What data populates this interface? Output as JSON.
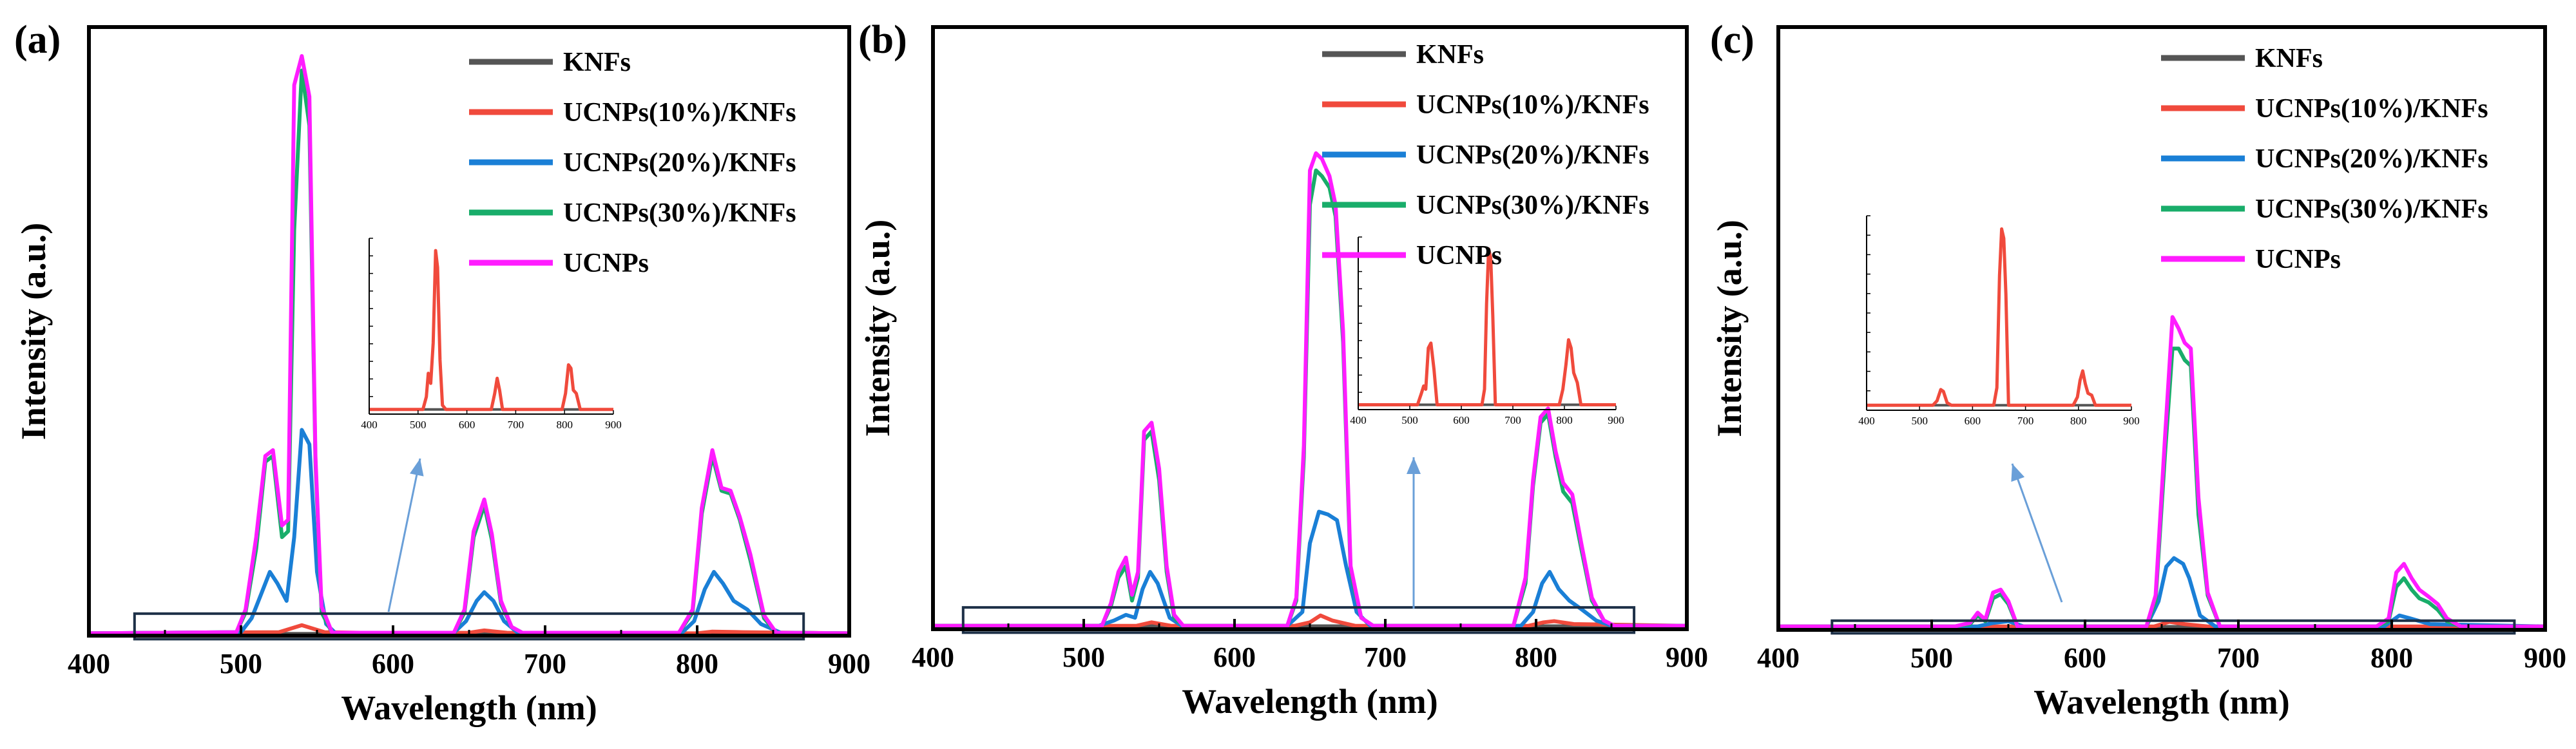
{
  "figure": {
    "series_colors": {
      "KNFs": "#555555",
      "UCNPs(10%)/KNFs": "#f04a3c",
      "UCNPs(20%)/KNFs": "#1a7fd6",
      "UCNPs(30%)/KNFs": "#19ad6a",
      "UCNPs": "#ff1cff"
    },
    "box_color": "#1d3047",
    "arrow_color": "#6a9fd8"
  },
  "chart_data": [
    {
      "type": "line",
      "panel_label": "(a)",
      "xlabel": "Wavelength (nm)",
      "ylabel": "Intensity (a.u.)",
      "xlim": [
        400,
        900
      ],
      "ylim": [
        0,
        1.05
      ],
      "xticks": [
        "400",
        "500",
        "600",
        "700",
        "800",
        "900"
      ],
      "legend": [
        "KNFs",
        "UCNPs(10%)/KNFs",
        "UCNPs(20%)/KNFs",
        "UCNPs(30%)/KNFs",
        "UCNPs"
      ],
      "series": [
        {
          "name": "KNFs",
          "x": [
            400,
            900
          ],
          "y": [
            0.003,
            0.003
          ]
        },
        {
          "name": "UCNPs(10%)/KNFs",
          "x": [
            400,
            525,
            540,
            555,
            600,
            650,
            660,
            675,
            800,
            810,
            830,
            900
          ],
          "y": [
            0.004,
            0.006,
            0.018,
            0.006,
            0.004,
            0.005,
            0.009,
            0.005,
            0.004,
            0.007,
            0.006,
            0.004
          ]
        },
        {
          "name": "UCNPs(20%)/KNFs",
          "x": [
            400,
            500,
            507,
            513,
            519,
            524,
            530,
            535,
            540,
            545,
            550,
            556,
            562,
            640,
            648,
            655,
            660,
            666,
            673,
            682,
            790,
            798,
            805,
            811,
            817,
            824,
            833,
            842,
            855,
            900
          ],
          "y": [
            0.004,
            0.006,
            0.03,
            0.07,
            0.11,
            0.09,
            0.06,
            0.17,
            0.355,
            0.33,
            0.11,
            0.02,
            0.005,
            0.005,
            0.025,
            0.06,
            0.075,
            0.06,
            0.025,
            0.005,
            0.005,
            0.025,
            0.08,
            0.11,
            0.09,
            0.06,
            0.045,
            0.02,
            0.005,
            0.004
          ]
        },
        {
          "name": "UCNPs(30%)/KNFs",
          "x": [
            400,
            497,
            503,
            510,
            516,
            521,
            527,
            531,
            535,
            540,
            545,
            549,
            553,
            560,
            640,
            647,
            653,
            660,
            665,
            671,
            678,
            685,
            788,
            797,
            803,
            810,
            816,
            822,
            828,
            835,
            844,
            852,
            900
          ],
          "y": [
            0.004,
            0.006,
            0.04,
            0.15,
            0.3,
            0.31,
            0.17,
            0.18,
            0.7,
            0.975,
            0.88,
            0.3,
            0.04,
            0.005,
            0.005,
            0.04,
            0.17,
            0.225,
            0.165,
            0.055,
            0.015,
            0.005,
            0.005,
            0.04,
            0.21,
            0.31,
            0.25,
            0.245,
            0.2,
            0.13,
            0.03,
            0.005,
            0.004
          ]
        },
        {
          "name": "UCNPs",
          "x": [
            400,
            497,
            503,
            510,
            516,
            521,
            527,
            531,
            535,
            540,
            545,
            549,
            553,
            560,
            640,
            647,
            653,
            660,
            665,
            671,
            678,
            685,
            788,
            797,
            803,
            810,
            816,
            822,
            828,
            835,
            844,
            852,
            900
          ],
          "y": [
            0.004,
            0.006,
            0.045,
            0.17,
            0.31,
            0.32,
            0.19,
            0.2,
            0.95,
            1.0,
            0.93,
            0.31,
            0.05,
            0.005,
            0.005,
            0.045,
            0.18,
            0.235,
            0.175,
            0.06,
            0.015,
            0.005,
            0.005,
            0.045,
            0.22,
            0.32,
            0.255,
            0.25,
            0.205,
            0.14,
            0.035,
            0.005,
            0.004
          ]
        }
      ],
      "inset": {
        "xlim": [
          400,
          900
        ],
        "ylim": [
          0,
          1
        ],
        "xticks": [
          "400",
          "500",
          "600",
          "700",
          "800",
          "900"
        ],
        "series": [
          {
            "name": "KNFs",
            "x": [
              400,
              900
            ],
            "y": [
              0.005,
              0.005
            ]
          },
          {
            "name": "UCNPs(10%)/KNFs",
            "x": [
              400,
              510,
              517,
              521,
              526,
              531,
              536,
              540,
              545,
              550,
              557,
              650,
              657,
              662,
              667,
              673,
              795,
              802,
              808,
              813,
              818,
              824,
              832,
              900
            ],
            "y": [
              0.005,
              0.005,
              0.08,
              0.22,
              0.16,
              0.4,
              0.95,
              0.85,
              0.3,
              0.03,
              0.005,
              0.005,
              0.1,
              0.19,
              0.12,
              0.005,
              0.005,
              0.1,
              0.27,
              0.25,
              0.12,
              0.1,
              0.005,
              0.005
            ]
          }
        ]
      }
    },
    {
      "type": "line",
      "panel_label": "(b)",
      "xlabel": "Wavelength (nm)",
      "ylabel": "Intensity (a.u.)",
      "xlim": [
        400,
        900
      ],
      "ylim": [
        0,
        1.05
      ],
      "xticks": [
        "400",
        "500",
        "600",
        "700",
        "800",
        "900"
      ],
      "legend": [
        "KNFs",
        "UCNPs(10%)/KNFs",
        "UCNPs(20%)/KNFs",
        "UCNPs(30%)/KNFs",
        "UCNPs"
      ],
      "series": [
        {
          "name": "KNFs",
          "x": [
            400,
            900
          ],
          "y": [
            0.005,
            0.005
          ]
        },
        {
          "name": "UCNPs(10%)/KNFs",
          "x": [
            400,
            535,
            545,
            558,
            640,
            650,
            657,
            665,
            680,
            795,
            805,
            812,
            825,
            900
          ],
          "y": [
            0.006,
            0.006,
            0.012,
            0.006,
            0.006,
            0.012,
            0.024,
            0.015,
            0.006,
            0.006,
            0.012,
            0.014,
            0.009,
            0.006
          ]
        },
        {
          "name": "UCNPs(20%)/KNFs",
          "x": [
            400,
            510,
            520,
            528,
            534,
            539,
            544,
            549,
            557,
            565,
            635,
            645,
            650,
            656,
            662,
            668,
            674,
            681,
            690,
            790,
            798,
            804,
            809,
            815,
            822,
            830,
            840,
            850,
            900
          ],
          "y": [
            0.006,
            0.006,
            0.015,
            0.025,
            0.02,
            0.07,
            0.1,
            0.08,
            0.02,
            0.006,
            0.006,
            0.03,
            0.15,
            0.205,
            0.2,
            0.19,
            0.11,
            0.03,
            0.006,
            0.006,
            0.03,
            0.08,
            0.1,
            0.07,
            0.05,
            0.035,
            0.015,
            0.006,
            0.006
          ]
        },
        {
          "name": "UCNPs(30%)/KNFs",
          "x": [
            400,
            512,
            518,
            523,
            528,
            532,
            536,
            540,
            545,
            550,
            555,
            560,
            566,
            635,
            641,
            646,
            650,
            654,
            658,
            663,
            667,
            672,
            677,
            684,
            692,
            785,
            793,
            798,
            803,
            808,
            813,
            818,
            824,
            830,
            837,
            845,
            852,
            900
          ],
          "y": [
            0.006,
            0.006,
            0.04,
            0.09,
            0.11,
            0.05,
            0.09,
            0.33,
            0.345,
            0.26,
            0.1,
            0.02,
            0.006,
            0.006,
            0.05,
            0.3,
            0.74,
            0.8,
            0.79,
            0.77,
            0.72,
            0.5,
            0.1,
            0.02,
            0.006,
            0.006,
            0.08,
            0.25,
            0.36,
            0.375,
            0.3,
            0.24,
            0.22,
            0.14,
            0.05,
            0.015,
            0.006,
            0.006
          ]
        },
        {
          "name": "UCNPs",
          "x": [
            400,
            512,
            518,
            523,
            528,
            532,
            536,
            540,
            545,
            550,
            555,
            560,
            566,
            635,
            641,
            646,
            650,
            654,
            658,
            663,
            667,
            672,
            677,
            684,
            692,
            785,
            793,
            798,
            803,
            808,
            813,
            818,
            824,
            830,
            837,
            845,
            852,
            900
          ],
          "y": [
            0.006,
            0.006,
            0.045,
            0.1,
            0.125,
            0.06,
            0.1,
            0.345,
            0.36,
            0.28,
            0.11,
            0.025,
            0.006,
            0.006,
            0.055,
            0.32,
            0.8,
            0.83,
            0.82,
            0.79,
            0.74,
            0.52,
            0.11,
            0.02,
            0.006,
            0.006,
            0.09,
            0.26,
            0.37,
            0.385,
            0.31,
            0.255,
            0.235,
            0.15,
            0.055,
            0.015,
            0.006,
            0.006
          ]
        }
      ],
      "inset": {
        "xlim": [
          400,
          900
        ],
        "ylim": [
          0,
          1
        ],
        "xticks": [
          "400",
          "500",
          "600",
          "700",
          "800",
          "900"
        ],
        "series": [
          {
            "name": "KNFs",
            "x": [
              400,
              900
            ],
            "y": [
              0.006,
              0.006
            ]
          },
          {
            "name": "UCNPs(10%)/KNFs",
            "x": [
              400,
              515,
              522,
              527,
              531,
              536,
              541,
              547,
              553,
              640,
              645,
              649,
              653,
              657,
              661,
              666,
              790,
              797,
              803,
              808,
              813,
              818,
              825,
              832,
              900
            ],
            "y": [
              0.006,
              0.006,
              0.07,
              0.12,
              0.1,
              0.35,
              0.38,
              0.22,
              0.006,
              0.006,
              0.1,
              0.62,
              0.95,
              0.9,
              0.55,
              0.006,
              0.006,
              0.1,
              0.25,
              0.4,
              0.35,
              0.2,
              0.14,
              0.006,
              0.006
            ]
          }
        ]
      }
    },
    {
      "type": "line",
      "panel_label": "(c)",
      "xlabel": "Wavelength (nm)",
      "ylabel": "Intensity (a.u.)",
      "xlim": [
        400,
        900
      ],
      "ylim": [
        0,
        1.05
      ],
      "xticks": [
        "400",
        "500",
        "600",
        "700",
        "800",
        "900"
      ],
      "legend": [
        "KNFs",
        "UCNPs(10%)/KNFs",
        "UCNPs(20%)/KNFs",
        "UCNPs(30%)/KNFs",
        "UCNPs"
      ],
      "series": [
        {
          "name": "KNFs",
          "x": [
            400,
            900
          ],
          "y": [
            0.005,
            0.005
          ]
        },
        {
          "name": "UCNPs(10%)/KNFs",
          "x": [
            400,
            645,
            655,
            665,
            680,
            900
          ],
          "y": [
            0.006,
            0.006,
            0.014,
            0.01,
            0.006,
            0.006
          ]
        },
        {
          "name": "UCNPs(20%)/KNFs",
          "x": [
            400,
            530,
            540,
            550,
            560,
            640,
            648,
            653,
            658,
            664,
            668,
            675,
            685,
            795,
            805,
            812,
            825,
            900
          ],
          "y": [
            0.006,
            0.006,
            0.012,
            0.015,
            0.006,
            0.006,
            0.05,
            0.11,
            0.125,
            0.115,
            0.09,
            0.025,
            0.006,
            0.006,
            0.025,
            0.02,
            0.01,
            0.006
          ]
        },
        {
          "name": "UCNPs(30%)/KNFs",
          "x": [
            400,
            515,
            525,
            530,
            535,
            540,
            545,
            550,
            556,
            640,
            646,
            652,
            657,
            661,
            665,
            669,
            674,
            680,
            688,
            790,
            798,
            803,
            808,
            813,
            818,
            824,
            830,
            836,
            845,
            900
          ],
          "y": [
            0.006,
            0.006,
            0.01,
            0.025,
            0.015,
            0.055,
            0.062,
            0.045,
            0.006,
            0.006,
            0.05,
            0.3,
            0.49,
            0.49,
            0.47,
            0.46,
            0.2,
            0.06,
            0.006,
            0.006,
            0.015,
            0.075,
            0.09,
            0.07,
            0.055,
            0.048,
            0.035,
            0.015,
            0.006,
            0.006
          ]
        },
        {
          "name": "UCNPs",
          "x": [
            400,
            515,
            525,
            530,
            535,
            540,
            545,
            550,
            556,
            640,
            646,
            652,
            657,
            661,
            665,
            669,
            674,
            680,
            688,
            790,
            798,
            803,
            808,
            813,
            818,
            824,
            830,
            836,
            845,
            900
          ],
          "y": [
            0.006,
            0.006,
            0.012,
            0.03,
            0.018,
            0.065,
            0.07,
            0.05,
            0.006,
            0.006,
            0.06,
            0.33,
            0.545,
            0.525,
            0.5,
            0.49,
            0.23,
            0.065,
            0.006,
            0.006,
            0.02,
            0.1,
            0.115,
            0.09,
            0.07,
            0.058,
            0.045,
            0.02,
            0.006,
            0.006
          ]
        }
      ],
      "inset": {
        "xlim": [
          400,
          900
        ],
        "ylim": [
          0,
          1
        ],
        "xticks": [
          "400",
          "500",
          "600",
          "700",
          "800",
          "900"
        ],
        "series": [
          {
            "name": "KNFs",
            "x": [
              400,
              900
            ],
            "y": [
              0.006,
              0.006
            ]
          },
          {
            "name": "UCNPs(10%)/KNFs",
            "x": [
              400,
              525,
              533,
              540,
              545,
              552,
              560,
              640,
              646,
              651,
              655,
              659,
              663,
              668,
              790,
              798,
              803,
              808,
              813,
              818,
              825,
              832,
              900
            ],
            "y": [
              0.006,
              0.006,
              0.03,
              0.09,
              0.08,
              0.02,
              0.006,
              0.006,
              0.1,
              0.7,
              0.95,
              0.9,
              0.6,
              0.006,
              0.006,
              0.05,
              0.14,
              0.19,
              0.12,
              0.07,
              0.06,
              0.006,
              0.006
            ]
          }
        ]
      }
    }
  ]
}
